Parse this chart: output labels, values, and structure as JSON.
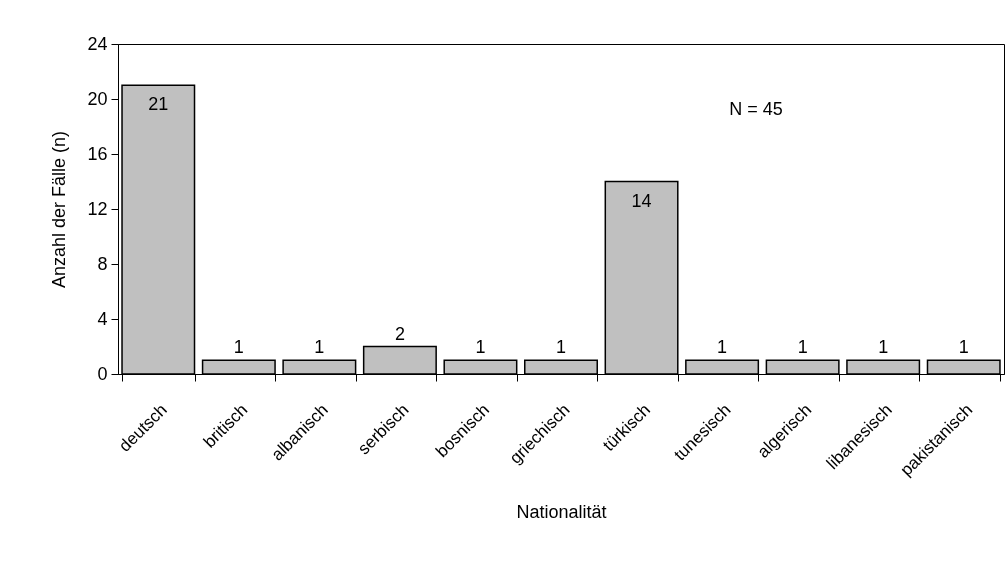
{
  "chart_data": {
    "type": "bar",
    "xlabel": "Nationalität",
    "ylabel": "Anzahl der Fälle (n)",
    "categories": [
      "deutsch",
      "britisch",
      "albanisch",
      "serbisch",
      "bosnisch",
      "griechisch",
      "türkisch",
      "tunesisch",
      "algerisch",
      "libanesisch",
      "pakistanisch"
    ],
    "values": [
      21,
      1,
      1,
      2,
      1,
      1,
      14,
      1,
      1,
      1,
      1
    ],
    "color": "#c0c0c0",
    "ylim": [
      0,
      24
    ],
    "yticks": [
      0,
      4,
      8,
      12,
      16,
      20,
      24
    ],
    "data_labels": true,
    "annotations": [
      "N = 45"
    ]
  }
}
